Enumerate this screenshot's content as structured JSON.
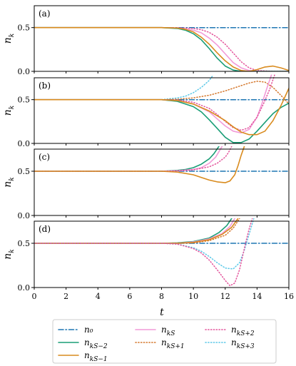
{
  "chart_data": {
    "type": "line",
    "xlabel": "t",
    "ylabel": "n_k",
    "xlim": [
      0,
      16
    ],
    "xticks": [
      "0",
      "2",
      "4",
      "6",
      "8",
      "10",
      "12",
      "14",
      "16"
    ],
    "colors": {
      "n0": "#1f77b4",
      "nks_m2": "#1a9e77",
      "nks_m1": "#d98b1e",
      "nks": "#f29ad8",
      "nks_p1": "#d4762a",
      "nks_p2": "#e3559c",
      "nks_p3": "#5bc8e8"
    },
    "legend": [
      {
        "key": "n0",
        "label": "n₀",
        "style": "dashdot",
        "color": "#1f77b4"
      },
      {
        "key": "nks_m2",
        "label": "n_{kS−2}",
        "style": "solid",
        "color": "#1a9e77"
      },
      {
        "key": "nks_m1",
        "label": "n_{kS−1}",
        "style": "solid",
        "color": "#d98b1e"
      },
      {
        "key": "nks",
        "label": "n_{kS}",
        "style": "solid",
        "color": "#f29ad8"
      },
      {
        "key": "nks_p1",
        "label": "n_{kS+1}",
        "style": "dotted",
        "color": "#d4762a"
      },
      {
        "key": "nks_p2",
        "label": "n_{kS+2}",
        "style": "dotted",
        "color": "#e3559c"
      },
      {
        "key": "nks_p3",
        "label": "n_{kS+3}",
        "style": "dotted",
        "color": "#5bc8e8"
      }
    ],
    "panels": [
      {
        "label": "(a)",
        "ylim": [
          0,
          0.75
        ],
        "yticks": [
          {
            "v": 0.0,
            "t": "0.0"
          },
          {
            "v": 0.5,
            "t": "0.5"
          }
        ],
        "series": [
          {
            "key": "n0",
            "x": [
              0,
              16
            ],
            "y": [
              0.5,
              0.5
            ]
          },
          {
            "key": "nks",
            "x": [
              0,
              8,
              9,
              10,
              10.5,
              11,
              11.5,
              12,
              12.5,
              13,
              13.5,
              14,
              15,
              16
            ],
            "y": [
              0.5,
              0.5,
              0.495,
              0.47,
              0.44,
              0.38,
              0.3,
              0.2,
              0.1,
              0.04,
              0.01,
              0.0,
              0.0,
              0.0
            ]
          },
          {
            "key": "nks_p2",
            "x": [
              0,
              8,
              9,
              10,
              10.5,
              11,
              11.5,
              12,
              12.5,
              13,
              13.5,
              14,
              15,
              16
            ],
            "y": [
              0.5,
              0.5,
              0.498,
              0.49,
              0.475,
              0.445,
              0.39,
              0.31,
              0.21,
              0.11,
              0.04,
              0.01,
              0.0,
              0.0
            ]
          },
          {
            "key": "nks_m2",
            "x": [
              0,
              8,
              9,
              9.5,
              10,
              10.5,
              11,
              11.5,
              12,
              12.5,
              13,
              13.5,
              14,
              15,
              16
            ],
            "y": [
              0.5,
              0.5,
              0.49,
              0.47,
              0.43,
              0.36,
              0.26,
              0.15,
              0.06,
              0.015,
              0.0,
              0.0,
              0.0,
              0.0,
              0.0
            ]
          },
          {
            "key": "nks_m1",
            "x": [
              0,
              8,
              9,
              9.5,
              10,
              10.5,
              11,
              11.5,
              12,
              12.5,
              13,
              13.5,
              14,
              14.5,
              15,
              15.5,
              16
            ],
            "y": [
              0.5,
              0.5,
              0.495,
              0.48,
              0.45,
              0.39,
              0.31,
              0.21,
              0.12,
              0.05,
              0.01,
              0.0,
              0.02,
              0.05,
              0.06,
              0.04,
              0.01
            ]
          }
        ]
      },
      {
        "label": "(b)",
        "ylim": [
          0,
          0.75
        ],
        "yticks": [
          {
            "v": 0.0,
            "t": "0.0"
          },
          {
            "v": 0.5,
            "t": "0.5"
          }
        ],
        "series": [
          {
            "key": "n0",
            "x": [
              0,
              16
            ],
            "y": [
              0.5,
              0.5
            ]
          },
          {
            "key": "nks_p3",
            "x": [
              0,
              8,
              9,
              9.5,
              10,
              10.5,
              11,
              11.2
            ],
            "y": [
              0.5,
              0.5,
              0.52,
              0.54,
              0.58,
              0.64,
              0.72,
              0.77
            ]
          },
          {
            "key": "nks_p1",
            "x": [
              0,
              8,
              9,
              10,
              11,
              12,
              13,
              13.5,
              14,
              14.5,
              15,
              15.5,
              16
            ],
            "y": [
              0.5,
              0.5,
              0.505,
              0.52,
              0.55,
              0.6,
              0.66,
              0.69,
              0.71,
              0.7,
              0.64,
              0.55,
              0.45
            ]
          },
          {
            "key": "nks_m2",
            "x": [
              0,
              8,
              9,
              10,
              10.5,
              11,
              11.5,
              12,
              12.5,
              13,
              13.5,
              14,
              14.5,
              15,
              15.5,
              16
            ],
            "y": [
              0.5,
              0.5,
              0.48,
              0.42,
              0.36,
              0.27,
              0.17,
              0.07,
              0.01,
              0.01,
              0.05,
              0.14,
              0.24,
              0.34,
              0.41,
              0.46
            ]
          },
          {
            "key": "nks",
            "x": [
              0,
              8,
              9,
              10,
              11,
              11.5,
              12,
              12.5,
              13,
              13.5,
              14,
              14.3,
              14.6,
              14.9
            ],
            "y": [
              0.5,
              0.5,
              0.49,
              0.45,
              0.36,
              0.28,
              0.2,
              0.14,
              0.12,
              0.16,
              0.3,
              0.45,
              0.62,
              0.78
            ]
          },
          {
            "key": "nks_p2",
            "x": [
              0,
              8,
              9,
              10,
              11,
              11.5,
              12,
              12.5,
              13,
              13.5,
              14,
              14.4,
              14.8,
              15.1
            ],
            "y": [
              0.5,
              0.5,
              0.495,
              0.47,
              0.4,
              0.33,
              0.25,
              0.18,
              0.15,
              0.18,
              0.3,
              0.45,
              0.62,
              0.78
            ]
          },
          {
            "key": "nks_m1",
            "x": [
              0,
              8,
              9,
              10,
              11,
              12,
              12.5,
              13,
              13.5,
              14,
              14.5,
              15,
              15.5,
              16
            ],
            "y": [
              0.5,
              0.5,
              0.49,
              0.45,
              0.37,
              0.26,
              0.19,
              0.13,
              0.1,
              0.1,
              0.14,
              0.26,
              0.43,
              0.63
            ]
          }
        ]
      },
      {
        "label": "(c)",
        "ylim": [
          0,
          0.75
        ],
        "yticks": [
          {
            "v": 0.0,
            "t": "0.0"
          },
          {
            "v": 0.5,
            "t": "0.5"
          }
        ],
        "series": [
          {
            "key": "n0",
            "x": [
              0,
              16
            ],
            "y": [
              0.5,
              0.5
            ]
          },
          {
            "key": "nks_m2",
            "x": [
              0,
              8,
              9,
              9.5,
              10,
              10.5,
              11,
              11.3,
              11.6
            ],
            "y": [
              0.5,
              0.5,
              0.51,
              0.52,
              0.54,
              0.58,
              0.64,
              0.7,
              0.78
            ]
          },
          {
            "key": "nks",
            "x": [
              0,
              8,
              9,
              10,
              10.5,
              11,
              11.4,
              11.8
            ],
            "y": [
              0.5,
              0.5,
              0.505,
              0.52,
              0.54,
              0.59,
              0.66,
              0.78
            ]
          },
          {
            "key": "nks_p2",
            "x": [
              0,
              8,
              9,
              10,
              11,
              11.5,
              12,
              12.2,
              12.4
            ],
            "y": [
              0.5,
              0.5,
              0.505,
              0.515,
              0.55,
              0.59,
              0.66,
              0.71,
              0.78
            ]
          },
          {
            "key": "nks_m1",
            "x": [
              0,
              8,
              9,
              10,
              10.5,
              11,
              11.5,
              12,
              12.3,
              12.6,
              12.8,
              13,
              13.2
            ],
            "y": [
              0.5,
              0.5,
              0.49,
              0.46,
              0.43,
              0.4,
              0.38,
              0.37,
              0.39,
              0.46,
              0.56,
              0.68,
              0.78
            ]
          }
        ]
      },
      {
        "label": "(d)",
        "ylim": [
          0,
          0.75
        ],
        "yticks": [
          {
            "v": 0.0,
            "t": "0.0"
          },
          {
            "v": 0.5,
            "t": "0.5"
          }
        ],
        "series": [
          {
            "key": "n0",
            "x": [
              0,
              16
            ],
            "y": [
              0.5,
              0.5
            ]
          },
          {
            "key": "nks_m2",
            "x": [
              0,
              8,
              9,
              10,
              11,
              11.6,
              12.1,
              12.4
            ],
            "y": [
              0.5,
              0.5,
              0.505,
              0.52,
              0.56,
              0.62,
              0.7,
              0.78
            ]
          },
          {
            "key": "nks",
            "x": [
              0,
              8,
              9,
              10,
              11,
              11.8,
              12.3,
              12.6
            ],
            "y": [
              0.5,
              0.5,
              0.5,
              0.515,
              0.55,
              0.61,
              0.69,
              0.78
            ]
          },
          {
            "key": "nks_m1",
            "x": [
              0,
              8,
              9,
              10,
              11,
              11.8,
              12.4,
              12.8
            ],
            "y": [
              0.5,
              0.5,
              0.5,
              0.51,
              0.54,
              0.6,
              0.68,
              0.78
            ]
          },
          {
            "key": "nks_p1",
            "x": [
              0,
              8,
              9,
              10,
              11,
              12,
              12.5,
              12.9
            ],
            "y": [
              0.5,
              0.5,
              0.5,
              0.505,
              0.53,
              0.59,
              0.67,
              0.78
            ]
          },
          {
            "key": "nks_p3",
            "x": [
              0,
              8,
              9,
              10,
              10.5,
              11,
              11.5,
              12,
              12.5,
              12.9,
              13.2,
              13.5,
              13.8
            ],
            "y": [
              0.5,
              0.5,
              0.49,
              0.45,
              0.41,
              0.35,
              0.28,
              0.22,
              0.21,
              0.28,
              0.42,
              0.6,
              0.78
            ]
          },
          {
            "key": "nks_p2",
            "x": [
              0,
              8,
              9,
              10,
              10.5,
              11,
              11.5,
              12,
              12.3,
              12.6,
              12.9,
              13.1,
              13.3,
              13.5,
              13.7
            ],
            "y": [
              0.5,
              0.5,
              0.49,
              0.44,
              0.39,
              0.31,
              0.2,
              0.08,
              0.02,
              0.05,
              0.2,
              0.36,
              0.52,
              0.66,
              0.78
            ]
          }
        ]
      }
    ]
  }
}
